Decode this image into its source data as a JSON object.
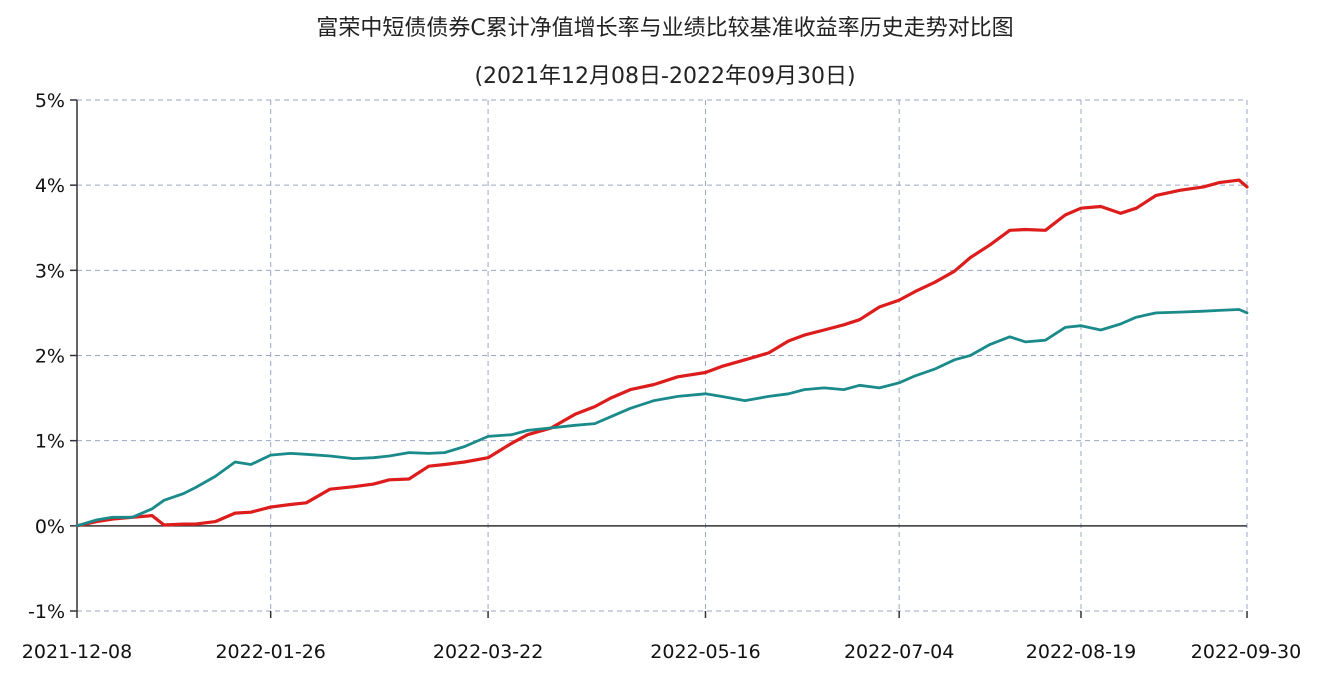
{
  "chart_data": {
    "type": "line",
    "title": "富荣中短债债券C累计净值增长率与业绩比较基准收益率历史走势对比图",
    "subtitle": "(2021年12月08日-2022年09月30日)",
    "ylim": [
      -1,
      5
    ],
    "y_ticks": [
      "5%",
      "4%",
      "3%",
      "2%",
      "1%",
      "0%",
      "-1%"
    ],
    "x_ticks": [
      "2021-12-08",
      "2022-01-26",
      "2022-03-22",
      "2022-05-16",
      "2022-07-04",
      "2022-08-19",
      "2022-09-30"
    ],
    "grid": true,
    "series": [
      {
        "color": "#dd1c1c",
        "x": [
          "2021-12-08",
          "2021-12-13",
          "2021-12-17",
          "2021-12-22",
          "2021-12-27",
          "2021-12-30",
          "2022-01-04",
          "2022-01-07",
          "2022-01-12",
          "2022-01-17",
          "2022-01-21",
          "2022-01-26",
          "2022-01-31",
          "2022-02-04",
          "2022-02-10",
          "2022-02-16",
          "2022-02-21",
          "2022-02-25",
          "2022-03-02",
          "2022-03-07",
          "2022-03-11",
          "2022-03-16",
          "2022-03-22",
          "2022-03-28",
          "2022-04-01",
          "2022-04-07",
          "2022-04-13",
          "2022-04-18",
          "2022-04-22",
          "2022-04-27",
          "2022-05-03",
          "2022-05-09",
          "2022-05-16",
          "2022-05-20",
          "2022-05-26",
          "2022-06-01",
          "2022-06-06",
          "2022-06-10",
          "2022-06-15",
          "2022-06-20",
          "2022-06-24",
          "2022-06-29",
          "2022-07-04",
          "2022-07-08",
          "2022-07-13",
          "2022-07-18",
          "2022-07-22",
          "2022-07-27",
          "2022-08-01",
          "2022-08-05",
          "2022-08-10",
          "2022-08-15",
          "2022-08-19",
          "2022-08-24",
          "2022-08-29",
          "2022-09-02",
          "2022-09-07",
          "2022-09-13",
          "2022-09-19",
          "2022-09-23",
          "2022-09-28",
          "2022-09-30"
        ],
        "values": [
          0.0,
          0.05,
          0.08,
          0.1,
          0.12,
          0.01,
          0.02,
          0.02,
          0.05,
          0.15,
          0.16,
          0.22,
          0.25,
          0.27,
          0.43,
          0.46,
          0.49,
          0.54,
          0.55,
          0.7,
          0.72,
          0.75,
          0.8,
          0.97,
          1.07,
          1.15,
          1.31,
          1.4,
          1.5,
          1.6,
          1.66,
          1.75,
          1.8,
          1.87,
          1.95,
          2.03,
          2.17,
          2.24,
          2.3,
          2.36,
          2.42,
          2.57,
          2.65,
          2.75,
          2.86,
          2.99,
          3.15,
          3.3,
          3.47,
          3.48,
          3.47,
          3.65,
          3.73,
          3.75,
          3.67,
          3.73,
          3.88,
          3.94,
          3.98,
          4.03,
          4.06,
          3.98
        ]
      },
      {
        "color": "#1a8a8a",
        "x": [
          "2021-12-08",
          "2021-12-13",
          "2021-12-17",
          "2021-12-22",
          "2021-12-27",
          "2021-12-30",
          "2022-01-04",
          "2022-01-07",
          "2022-01-12",
          "2022-01-17",
          "2022-01-21",
          "2022-01-26",
          "2022-01-31",
          "2022-02-04",
          "2022-02-10",
          "2022-02-16",
          "2022-02-21",
          "2022-02-25",
          "2022-03-02",
          "2022-03-07",
          "2022-03-11",
          "2022-03-16",
          "2022-03-22",
          "2022-03-28",
          "2022-04-01",
          "2022-04-07",
          "2022-04-13",
          "2022-04-18",
          "2022-04-22",
          "2022-04-27",
          "2022-05-03",
          "2022-05-09",
          "2022-05-16",
          "2022-05-20",
          "2022-05-26",
          "2022-06-01",
          "2022-06-06",
          "2022-06-10",
          "2022-06-15",
          "2022-06-20",
          "2022-06-24",
          "2022-06-29",
          "2022-07-04",
          "2022-07-08",
          "2022-07-13",
          "2022-07-18",
          "2022-07-22",
          "2022-07-27",
          "2022-08-01",
          "2022-08-05",
          "2022-08-10",
          "2022-08-15",
          "2022-08-19",
          "2022-08-24",
          "2022-08-29",
          "2022-09-02",
          "2022-09-07",
          "2022-09-13",
          "2022-09-19",
          "2022-09-23",
          "2022-09-28",
          "2022-09-30"
        ],
        "values": [
          0.0,
          0.07,
          0.1,
          0.1,
          0.2,
          0.3,
          0.38,
          0.45,
          0.58,
          0.75,
          0.72,
          0.83,
          0.85,
          0.84,
          0.82,
          0.79,
          0.8,
          0.82,
          0.86,
          0.85,
          0.86,
          0.93,
          1.05,
          1.07,
          1.12,
          1.15,
          1.18,
          1.2,
          1.28,
          1.38,
          1.47,
          1.52,
          1.55,
          1.52,
          1.47,
          1.52,
          1.55,
          1.6,
          1.62,
          1.6,
          1.65,
          1.62,
          1.68,
          1.76,
          1.84,
          1.95,
          2.0,
          2.13,
          2.22,
          2.16,
          2.18,
          2.33,
          2.35,
          2.3,
          2.37,
          2.45,
          2.5,
          2.51,
          2.52,
          2.53,
          2.54,
          2.5
        ]
      }
    ]
  }
}
